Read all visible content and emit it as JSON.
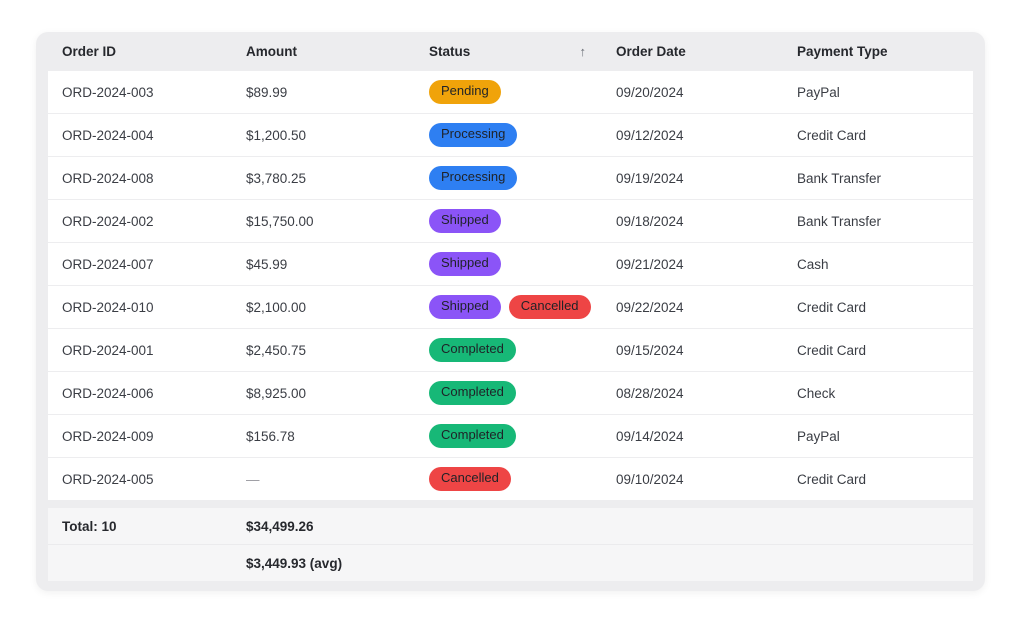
{
  "table": {
    "columns": [
      {
        "label": "Order ID"
      },
      {
        "label": "Amount"
      },
      {
        "label": "Status",
        "sort_direction": "ascending",
        "sort_icon": "↑"
      },
      {
        "label": "Order Date"
      },
      {
        "label": "Payment Type"
      }
    ],
    "rows": [
      {
        "order_id": "ORD-2024-003",
        "amount": "$89.99",
        "statuses": [
          "Pending"
        ],
        "order_date": "09/20/2024",
        "payment_type": "PayPal"
      },
      {
        "order_id": "ORD-2024-004",
        "amount": "$1,200.50",
        "statuses": [
          "Processing"
        ],
        "order_date": "09/12/2024",
        "payment_type": "Credit Card"
      },
      {
        "order_id": "ORD-2024-008",
        "amount": "$3,780.25",
        "statuses": [
          "Processing"
        ],
        "order_date": "09/19/2024",
        "payment_type": "Bank Transfer"
      },
      {
        "order_id": "ORD-2024-002",
        "amount": "$15,750.00",
        "statuses": [
          "Shipped"
        ],
        "order_date": "09/18/2024",
        "payment_type": "Bank Transfer"
      },
      {
        "order_id": "ORD-2024-007",
        "amount": "$45.99",
        "statuses": [
          "Shipped"
        ],
        "order_date": "09/21/2024",
        "payment_type": "Cash"
      },
      {
        "order_id": "ORD-2024-010",
        "amount": "$2,100.00",
        "statuses": [
          "Shipped",
          "Cancelled"
        ],
        "order_date": "09/22/2024",
        "payment_type": "Credit Card"
      },
      {
        "order_id": "ORD-2024-001",
        "amount": "$2,450.75",
        "statuses": [
          "Completed"
        ],
        "order_date": "09/15/2024",
        "payment_type": "Credit Card"
      },
      {
        "order_id": "ORD-2024-006",
        "amount": "$8,925.00",
        "statuses": [
          "Completed"
        ],
        "order_date": "08/28/2024",
        "payment_type": "Check"
      },
      {
        "order_id": "ORD-2024-009",
        "amount": "$156.78",
        "statuses": [
          "Completed"
        ],
        "order_date": "09/14/2024",
        "payment_type": "PayPal"
      },
      {
        "order_id": "ORD-2024-005",
        "amount": "—",
        "statuses": [
          "Cancelled"
        ],
        "order_date": "09/10/2024",
        "payment_type": "Credit Card"
      }
    ],
    "footer": {
      "total_label": "Total: 10",
      "total_amount": "$34,499.26",
      "avg_amount": "$3,449.93 (avg)"
    },
    "status_colors": {
      "Pending": "#f0a30a",
      "Processing": "#2e7ff2",
      "Shipped": "#8b54f7",
      "Completed": "#17b877",
      "Cancelled": "#ee4545"
    },
    "empty_amount_placeholder": "—"
  }
}
